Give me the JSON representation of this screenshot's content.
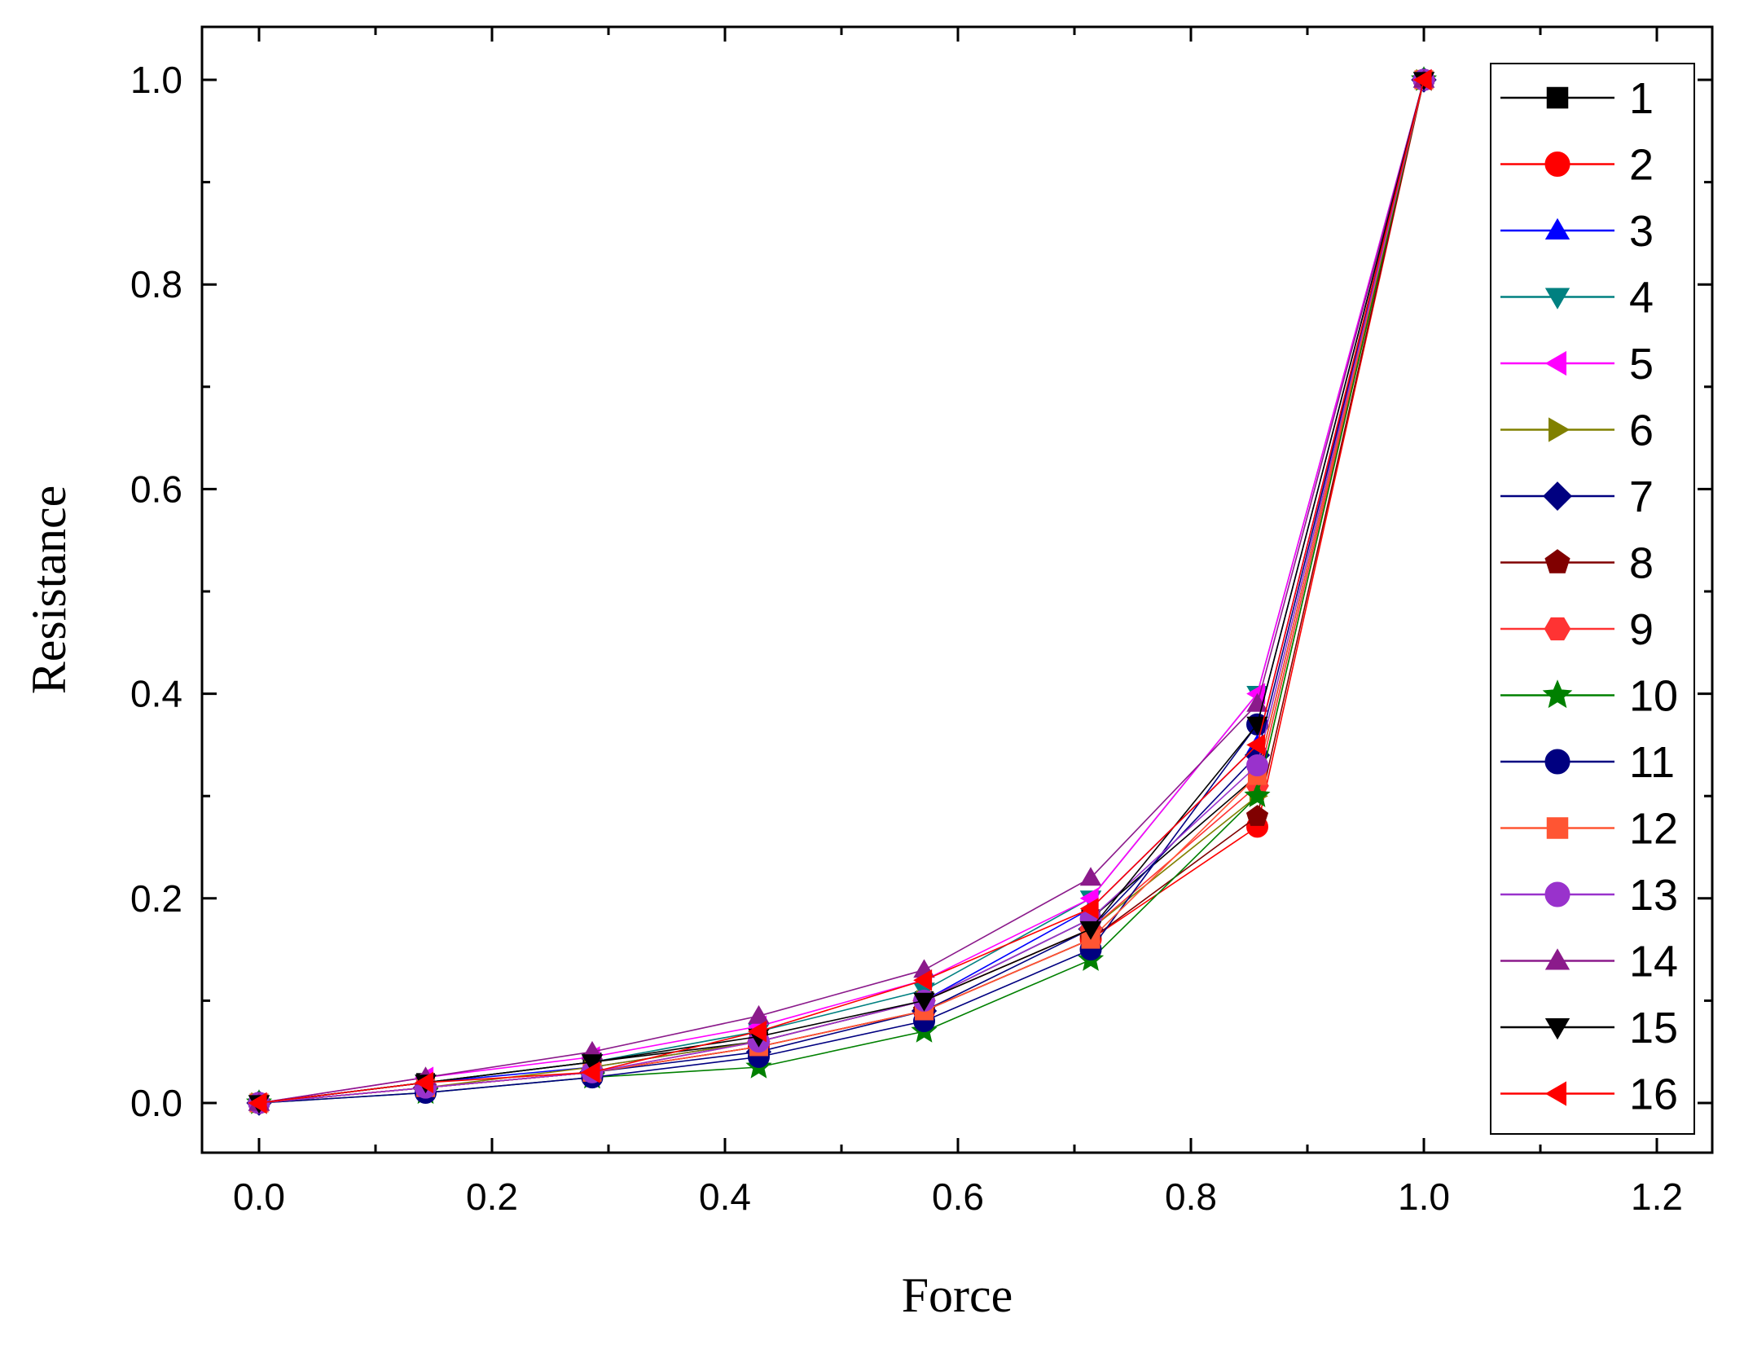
{
  "chart_data": {
    "type": "line",
    "title": "",
    "xlabel": "Force",
    "ylabel": "Resistance",
    "xlim": [
      -0.05,
      1.22
    ],
    "ylim": [
      -0.05,
      1.05
    ],
    "x_ticks": [
      0.0,
      0.2,
      0.4,
      0.6,
      0.8,
      1.0,
      1.2
    ],
    "x_tick_labels": [
      "0.0",
      "0.2",
      "0.4",
      "0.6",
      "0.8",
      "1.0",
      "1.2"
    ],
    "y_ticks": [
      0.0,
      0.2,
      0.4,
      0.6,
      0.8,
      1.0
    ],
    "y_tick_labels": [
      "0.0",
      "0.2",
      "0.4",
      "0.6",
      "0.8",
      "1.0"
    ],
    "grid": false,
    "legend_position": "right",
    "x": [
      0.0,
      0.143,
      0.286,
      0.429,
      0.571,
      0.714,
      0.857,
      1.0
    ],
    "series": [
      {
        "name": "1",
        "color": "#000000",
        "marker": "square",
        "values": [
          0,
          0.02,
          0.04,
          0.06,
          0.1,
          0.18,
          0.32,
          1.0
        ]
      },
      {
        "name": "2",
        "color": "#ff0000",
        "marker": "circle",
        "values": [
          0,
          0.015,
          0.03,
          0.055,
          0.09,
          0.16,
          0.27,
          1.0
        ]
      },
      {
        "name": "3",
        "color": "#0000ff",
        "marker": "triangle-up",
        "values": [
          0,
          0.02,
          0.035,
          0.06,
          0.1,
          0.19,
          0.35,
          1.0
        ]
      },
      {
        "name": "4",
        "color": "#008080",
        "marker": "triangle-down",
        "values": [
          0,
          0.02,
          0.04,
          0.07,
          0.11,
          0.2,
          0.4,
          1.0
        ]
      },
      {
        "name": "5",
        "color": "#ff00ff",
        "marker": "triangle-left",
        "values": [
          0,
          0.025,
          0.045,
          0.075,
          0.12,
          0.2,
          0.4,
          1.0
        ]
      },
      {
        "name": "6",
        "color": "#808000",
        "marker": "triangle-right",
        "values": [
          0,
          0.015,
          0.035,
          0.06,
          0.1,
          0.17,
          0.3,
          1.0
        ]
      },
      {
        "name": "7",
        "color": "#000080",
        "marker": "diamond",
        "values": [
          0,
          0.015,
          0.03,
          0.05,
          0.09,
          0.17,
          0.34,
          1.0
        ]
      },
      {
        "name": "8",
        "color": "#800000",
        "marker": "pentagon",
        "values": [
          0,
          0.015,
          0.03,
          0.055,
          0.09,
          0.16,
          0.28,
          1.0
        ]
      },
      {
        "name": "9",
        "color": "#ff3333",
        "marker": "hexagon",
        "values": [
          0,
          0.015,
          0.03,
          0.06,
          0.1,
          0.17,
          0.31,
          1.0
        ]
      },
      {
        "name": "10",
        "color": "#008000",
        "marker": "star",
        "values": [
          0,
          0.01,
          0.025,
          0.035,
          0.07,
          0.14,
          0.3,
          1.0
        ]
      },
      {
        "name": "11",
        "color": "#000080",
        "marker": "ball",
        "values": [
          0,
          0.01,
          0.025,
          0.045,
          0.08,
          0.15,
          0.37,
          1.0
        ]
      },
      {
        "name": "12",
        "color": "#ff5533",
        "marker": "square-dotted",
        "values": [
          0,
          0.015,
          0.03,
          0.055,
          0.09,
          0.16,
          0.32,
          1.0
        ]
      },
      {
        "name": "13",
        "color": "#9932cc",
        "marker": "circle",
        "values": [
          0,
          0.015,
          0.03,
          0.06,
          0.1,
          0.18,
          0.33,
          1.0
        ]
      },
      {
        "name": "14",
        "color": "#8b1a8b",
        "marker": "triangle-up",
        "values": [
          0,
          0.025,
          0.05,
          0.085,
          0.13,
          0.22,
          0.39,
          1.0
        ]
      },
      {
        "name": "15",
        "color": "#000000",
        "marker": "triangle-down",
        "values": [
          0,
          0.02,
          0.04,
          0.065,
          0.1,
          0.17,
          0.37,
          1.0
        ]
      },
      {
        "name": "16",
        "color": "#ff0000",
        "marker": "triangle-left",
        "values": [
          0,
          0.02,
          0.03,
          0.07,
          0.12,
          0.19,
          0.35,
          1.0
        ]
      }
    ]
  }
}
